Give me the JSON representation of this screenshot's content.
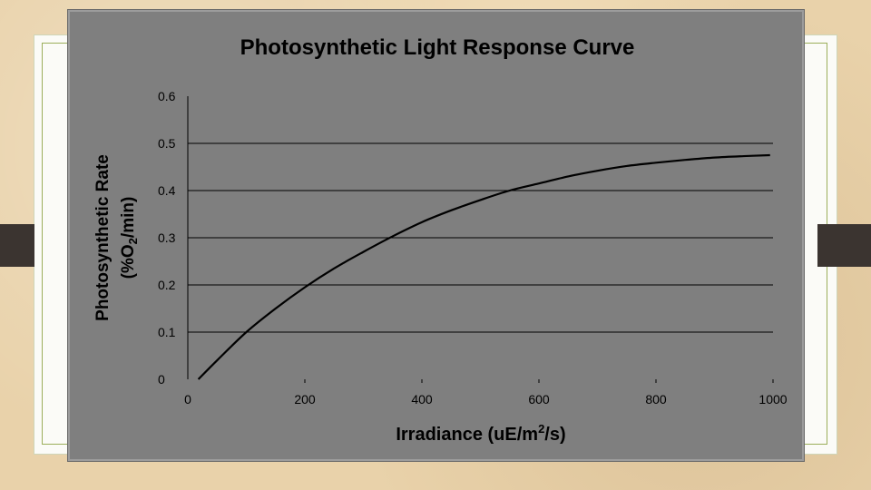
{
  "chart_data": {
    "type": "line",
    "title": "Photosynthetic Light Response Curve",
    "ylabel_line1": "Photosynthetic Rate",
    "ylabel_line2_prefix": "(%O",
    "ylabel_line2_sub": "2",
    "ylabel_line2_suffix": "/min)",
    "xlabel_prefix": "Irradiance (uE/m",
    "xlabel_sup": "2",
    "xlabel_suffix": "/s)",
    "xlim": [
      0,
      1000
    ],
    "ylim": [
      0,
      0.6
    ],
    "x_ticks": [
      0,
      200,
      400,
      600,
      800,
      1000
    ],
    "x_tick_labels": [
      "0",
      "200",
      "400",
      "600",
      "800",
      "1000"
    ],
    "y_ticks": [
      0,
      0.1,
      0.2,
      0.3,
      0.4,
      0.5,
      0.6
    ],
    "y_tick_labels": [
      "0",
      "0.1",
      "0.2",
      "0.3",
      "0.4",
      "0.5",
      "0.6"
    ],
    "gridlines": [
      0.1,
      0.2,
      0.3,
      0.4,
      0.5
    ],
    "series": [
      {
        "x": [
          18,
          50,
          100,
          150,
          200,
          250,
          300,
          350,
          400,
          450,
          500,
          550,
          600,
          650,
          700,
          750,
          800,
          850,
          900,
          950,
          995
        ],
        "values": [
          0.0,
          0.04,
          0.1,
          0.15,
          0.195,
          0.235,
          0.27,
          0.303,
          0.333,
          0.358,
          0.38,
          0.4,
          0.415,
          0.43,
          0.442,
          0.452,
          0.459,
          0.465,
          0.47,
          0.473,
          0.475
        ]
      }
    ],
    "colors": {
      "panel": "#7f7f7f",
      "line": "#000000",
      "grid": "#000000"
    }
  }
}
